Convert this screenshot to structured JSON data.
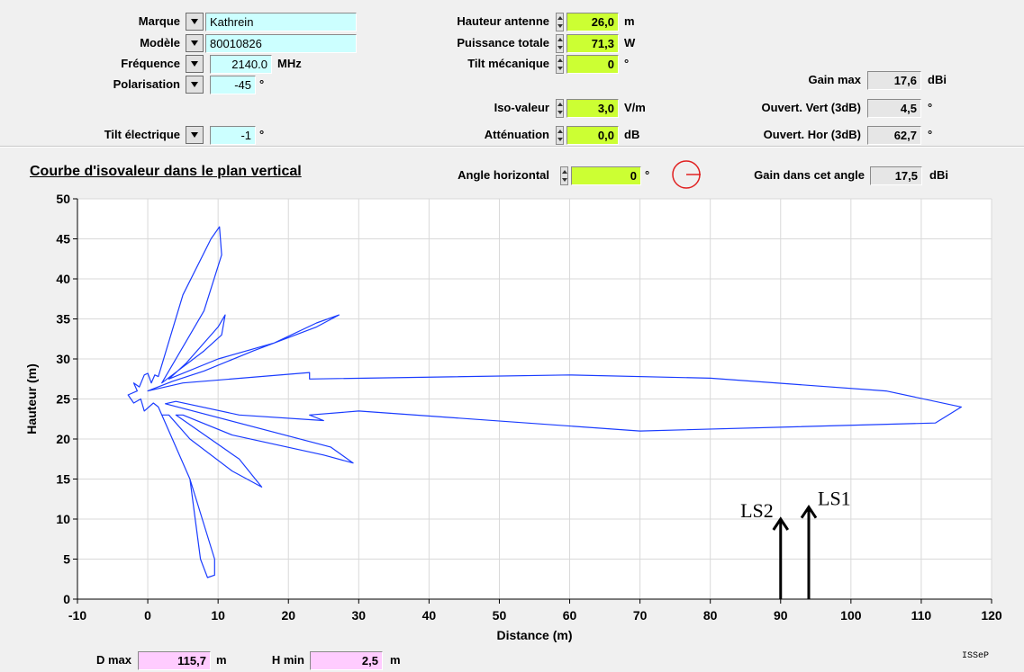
{
  "params": {
    "marque": {
      "label": "Marque",
      "value": "Kathrein"
    },
    "modele": {
      "label": "Modèle",
      "value": "80010826"
    },
    "frequence": {
      "label": "Fréquence",
      "value": "2140.0",
      "unit": "MHz"
    },
    "polarisation": {
      "label": "Polarisation",
      "value": "-45",
      "unit": "°"
    },
    "tilt_electrique": {
      "label": "Tilt électrique",
      "value": "-1",
      "unit": "°"
    },
    "hauteur_antenne": {
      "label": "Hauteur antenne",
      "value": "26,0",
      "unit": "m"
    },
    "puissance_totale": {
      "label": "Puissance totale",
      "value": "71,3",
      "unit": "W"
    },
    "tilt_mecanique": {
      "label": "Tilt mécanique",
      "value": "0",
      "unit": "°"
    },
    "iso_valeur": {
      "label": "Iso-valeur",
      "value": "3,0",
      "unit": "V/m"
    },
    "attenuation": {
      "label": "Atténuation",
      "value": "0,0",
      "unit": "dB"
    },
    "gain_max": {
      "label": "Gain max",
      "value": "17,6",
      "unit": "dBi"
    },
    "ouvert_vert": {
      "label": "Ouvert. Vert (3dB)",
      "value": "4,5",
      "unit": "°"
    },
    "ouvert_hor": {
      "label": "Ouvert. Hor (3dB)",
      "value": "62,7",
      "unit": "°"
    }
  },
  "chart_header": {
    "title": "Courbe d'isovaleur dans le plan vertical",
    "angle_horizontal": {
      "label": "Angle horizontal",
      "value": "0",
      "unit": "°"
    },
    "gain_angle": {
      "label": "Gain dans cet angle",
      "value": "17,5",
      "unit": "dBi"
    }
  },
  "footer": {
    "dmax": {
      "label": "D max",
      "value": "115,7",
      "unit": "m"
    },
    "hmin": {
      "label": "H min",
      "value": "2,5",
      "unit": "m"
    },
    "logo": "ISSeP"
  },
  "colors": {
    "curve": "#1a3cff",
    "green_field": "#ccff33",
    "cyan_field": "#ccffff",
    "pink_field": "#ffccff",
    "polar_icon": "#e02020"
  },
  "chart_data": {
    "type": "line",
    "xlabel": "Distance (m)",
    "ylabel": "Hauteur (m)",
    "xlim": [
      -10,
      120
    ],
    "ylim": [
      0,
      50
    ],
    "xticks": [
      -10,
      0,
      10,
      20,
      30,
      40,
      50,
      60,
      70,
      80,
      90,
      100,
      110,
      120
    ],
    "yticks": [
      0,
      5,
      10,
      15,
      20,
      25,
      30,
      35,
      40,
      45,
      50
    ],
    "grid": true,
    "series": [
      {
        "points": [
          [
            0.0,
            26.0
          ],
          [
            5.0,
            27.0
          ],
          [
            23.0,
            28.3
          ],
          [
            23.0,
            27.5
          ],
          [
            60.0,
            28.0
          ],
          [
            80.0,
            27.6
          ],
          [
            105.0,
            26.0
          ],
          [
            115.7,
            24.0
          ],
          [
            112.0,
            22.0
          ],
          [
            70.0,
            21.0
          ],
          [
            30.0,
            23.5
          ],
          [
            23.0,
            23.0
          ],
          [
            25.0,
            22.3
          ],
          [
            13.0,
            23.0
          ],
          [
            4.0,
            24.7
          ],
          [
            2.5,
            24.4
          ],
          [
            26.0,
            19.0
          ],
          [
            29.2,
            17.0
          ],
          [
            25.0,
            18.0
          ],
          [
            12.0,
            20.5
          ],
          [
            5.0,
            23.0
          ],
          [
            4.0,
            23.0
          ],
          [
            13.0,
            17.5
          ],
          [
            16.2,
            14.0
          ],
          [
            12.0,
            16.0
          ],
          [
            6.0,
            20.0
          ],
          [
            3.0,
            23.0
          ],
          [
            2.0,
            23.0
          ],
          [
            6.0,
            15.0
          ],
          [
            9.5,
            5.0
          ],
          [
            9.5,
            3.0
          ],
          [
            8.5,
            2.7
          ],
          [
            7.5,
            5.0
          ],
          [
            6.0,
            15.0
          ],
          [
            1.5,
            24.0
          ],
          [
            0.8,
            24.5
          ],
          [
            -0.5,
            23.5
          ],
          [
            -1.0,
            25.0
          ],
          [
            -2.0,
            24.5
          ],
          [
            -2.8,
            25.5
          ],
          [
            -1.5,
            26.0
          ],
          [
            -2.0,
            27.0
          ],
          [
            -1.2,
            26.5
          ],
          [
            -0.5,
            28.0
          ],
          [
            0.0,
            28.2
          ],
          [
            0.5,
            27.0
          ],
          [
            1.0,
            28.0
          ],
          [
            1.5,
            27.8
          ],
          [
            5.0,
            38.0
          ],
          [
            9.0,
            45.0
          ],
          [
            10.2,
            46.5
          ],
          [
            10.5,
            43.0
          ],
          [
            8.0,
            36.0
          ],
          [
            2.0,
            27.0
          ],
          [
            3.5,
            28.0
          ],
          [
            8.0,
            31.0
          ],
          [
            10.5,
            33.0
          ],
          [
            11.0,
            35.5
          ],
          [
            10.0,
            34.0
          ],
          [
            5.5,
            29.5
          ],
          [
            3.0,
            27.5
          ],
          [
            10.0,
            30.0
          ],
          [
            18.0,
            32.0
          ],
          [
            24.0,
            34.5
          ],
          [
            27.2,
            35.5
          ],
          [
            24.0,
            34.0
          ],
          [
            15.0,
            31.0
          ],
          [
            8.0,
            28.5
          ],
          [
            3.5,
            27.2
          ],
          [
            0.0,
            26.0
          ]
        ]
      }
    ],
    "annotations": [
      {
        "text": "LS2",
        "x": 90,
        "y_base": 0,
        "y_tip": 10.0
      },
      {
        "text": "LS1",
        "x": 94,
        "y_base": 0,
        "y_tip": 11.5
      }
    ]
  }
}
